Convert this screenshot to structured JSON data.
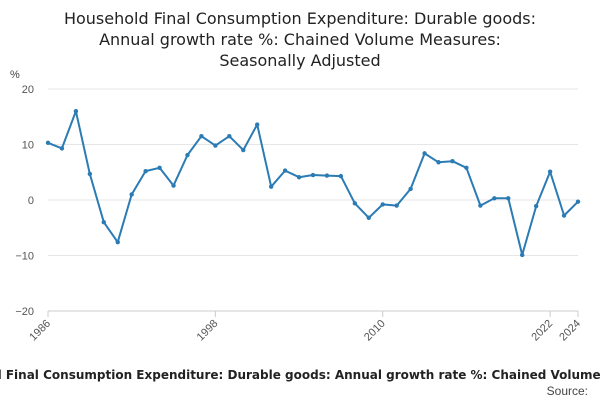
{
  "chart_data": {
    "type": "line",
    "title_lines": [
      "Household Final Consumption Expenditure: Durable goods:",
      "Annual growth rate %: Chained Volume Measures:",
      "Seasonally Adjusted"
    ],
    "unit_label": "%",
    "legend_label": "Household Final Consumption Expenditure: Durable goods: Annual growth rate %: Chained Volume Measures",
    "source_label": "Source:",
    "ylim": [
      -20,
      20
    ],
    "yticks": [
      20,
      10,
      0,
      -10,
      -20
    ],
    "ytick_labels": [
      "20",
      "10",
      "0",
      "−10",
      "−20"
    ],
    "xlim": [
      1986,
      2024
    ],
    "xticks": [
      1986,
      1998,
      2010,
      2022,
      2024
    ],
    "xtick_labels": [
      "1986",
      "1998",
      "2010",
      "2022",
      "2024"
    ],
    "grid": true,
    "colors": {
      "line": "#2b7bb4",
      "grid": "#e6e6e6",
      "axis": "#cccccc"
    },
    "x": [
      1986,
      1987,
      1988,
      1989,
      1990,
      1991,
      1992,
      1993,
      1994,
      1995,
      1996,
      1997,
      1998,
      1999,
      2000,
      2001,
      2002,
      2003,
      2004,
      2005,
      2006,
      2007,
      2008,
      2009,
      2010,
      2011,
      2012,
      2013,
      2014,
      2015,
      2016,
      2017,
      2018,
      2019,
      2020,
      2021,
      2022,
      2023,
      2024
    ],
    "values": [
      10.3,
      9.3,
      16.0,
      4.7,
      -4.0,
      -7.6,
      1.0,
      5.2,
      5.8,
      2.6,
      8.1,
      11.5,
      9.8,
      11.5,
      9.0,
      13.6,
      2.4,
      5.3,
      4.1,
      4.5,
      4.4,
      4.3,
      -0.6,
      -3.2,
      -0.8,
      -1.0,
      2.0,
      8.4,
      6.8,
      7.0,
      5.8,
      -1.0,
      0.3,
      0.3,
      -9.9,
      -1.1,
      5.1,
      -2.8,
      -0.3
    ]
  }
}
